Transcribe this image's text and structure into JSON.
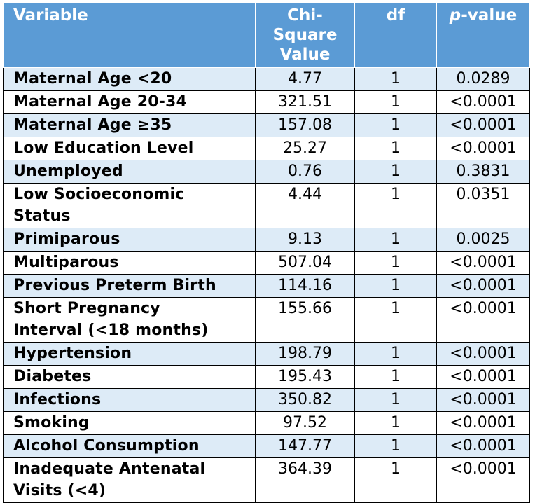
{
  "table": {
    "headers": {
      "variable": "Variable",
      "chi_square_line1": "Chi-Square",
      "chi_square_line2": "Value",
      "df": "df",
      "p_value_italic": "p",
      "p_value_rest": "-value"
    },
    "rows": [
      {
        "variable": "Maternal Age <20",
        "chi": "4.77",
        "df": "1",
        "p": "0.0289"
      },
      {
        "variable": "Maternal Age 20-34",
        "chi": "321.51",
        "df": "1",
        "p": "<0.0001"
      },
      {
        "variable": "Maternal Age ≥35",
        "chi": "157.08",
        "df": "1",
        "p": "<0.0001"
      },
      {
        "variable": "Low Education Level",
        "chi": "25.27",
        "df": "1",
        "p": "<0.0001"
      },
      {
        "variable": "Unemployed",
        "chi": "0.76",
        "df": "1",
        "p": "0.3831"
      },
      {
        "variable_line1": "Low Socioeconomic",
        "variable_line2": "Status",
        "chi": "4.44",
        "df": "1",
        "p": "0.0351"
      },
      {
        "variable": "Primiparous",
        "chi": "9.13",
        "df": "1",
        "p": "0.0025"
      },
      {
        "variable": "Multiparous",
        "chi": "507.04",
        "df": "1",
        "p": "<0.0001"
      },
      {
        "variable": "Previous Preterm Birth",
        "chi": "114.16",
        "df": "1",
        "p": "<0.0001"
      },
      {
        "variable_line1": "Short Pregnancy",
        "variable_line2": "Interval (<18 months)",
        "chi": "155.66",
        "df": "1",
        "p": "<0.0001"
      },
      {
        "variable": "Hypertension",
        "chi": "198.79",
        "df": "1",
        "p": "<0.0001"
      },
      {
        "variable": "Diabetes",
        "chi": "195.43",
        "df": "1",
        "p": "<0.0001"
      },
      {
        "variable": "Infections",
        "chi": "350.82",
        "df": "1",
        "p": "<0.0001"
      },
      {
        "variable": "Smoking",
        "chi": "97.52",
        "df": "1",
        "p": "<0.0001"
      },
      {
        "variable": "Alcohol Consumption",
        "chi": "147.77",
        "df": "1",
        "p": "<0.0001"
      },
      {
        "variable_line1": "Inadequate Antenatal",
        "variable_line2": "Visits (<4)",
        "chi": "364.39",
        "df": "1",
        "p": "<0.0001"
      }
    ]
  },
  "colors": {
    "header_bg": "#5b9bd5",
    "header_text": "#ffffff",
    "band_row": "#ddebf7",
    "plain_row": "#ffffff",
    "grid": "#000000"
  }
}
